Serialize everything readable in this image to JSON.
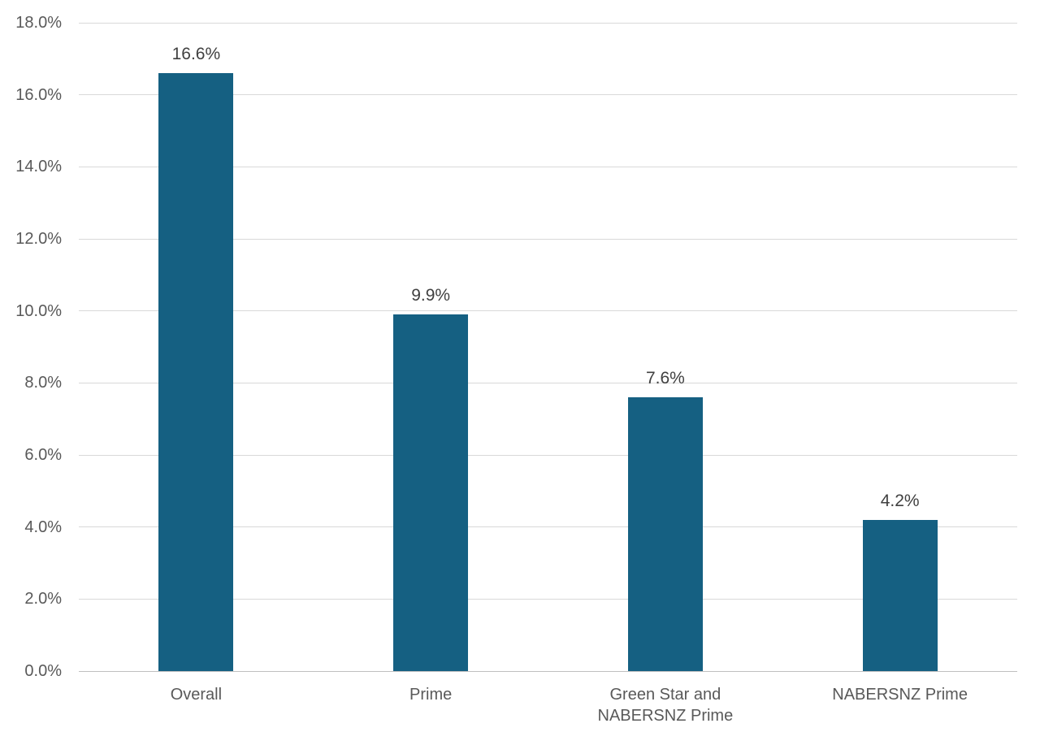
{
  "chart_data": {
    "type": "bar",
    "title": "",
    "xlabel": "",
    "ylabel": "",
    "categories": [
      "Overall",
      "Prime",
      "Green Star and NABERSNZ Prime",
      "NABERSNZ Prime"
    ],
    "values": [
      16.6,
      9.9,
      7.6,
      4.2
    ],
    "data_labels": [
      "16.6%",
      "9.9%",
      "7.6%",
      "4.2%"
    ],
    "ylim": [
      0,
      18
    ],
    "ytick_step": 2,
    "ytick_labels": [
      "0.0%",
      "2.0%",
      "4.0%",
      "6.0%",
      "8.0%",
      "10.0%",
      "12.0%",
      "14.0%",
      "16.0%",
      "18.0%"
    ],
    "grid": true,
    "legend": "none",
    "colors": {
      "bar": "#156082",
      "gridline": "#d9d9d9",
      "axis_line": "#bfbfbf",
      "tick_label": "#595959",
      "data_label": "#404040",
      "background": "#ffffff"
    }
  }
}
